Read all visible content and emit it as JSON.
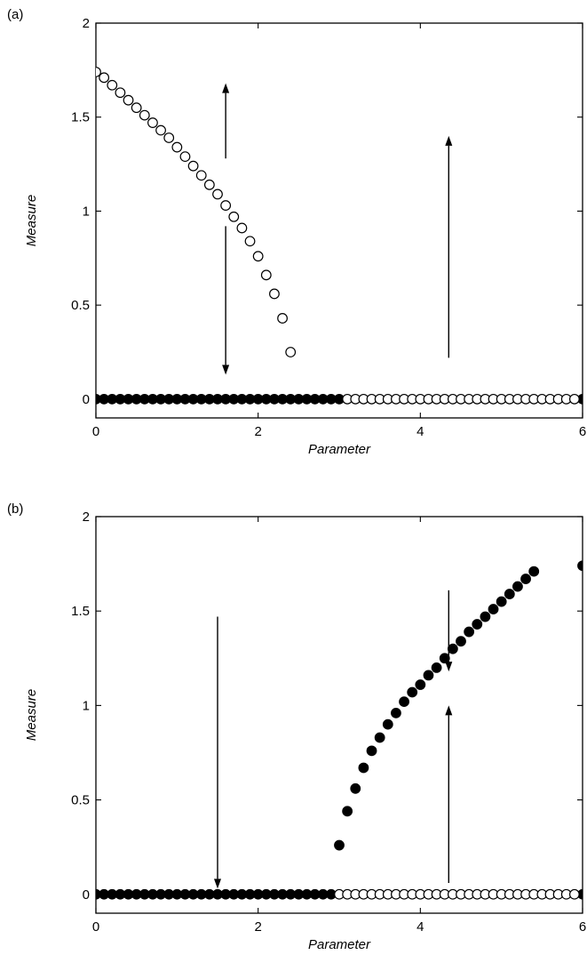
{
  "chart_data": [
    {
      "panel_label": "(a)",
      "type": "scatter",
      "xlabel": "Parameter",
      "ylabel": "Measure",
      "xlim": [
        0,
        6
      ],
      "ylim": [
        -0.1,
        2
      ],
      "xticks": [
        0,
        2,
        4,
        6
      ],
      "yticks": [
        0,
        0.5,
        1,
        1.5,
        2
      ],
      "xtick_labels": [
        "0",
        "2",
        "4",
        "6"
      ],
      "ytick_labels": [
        "0",
        "0.5",
        "1",
        "1.5",
        "2"
      ],
      "series": [
        {
          "marker": "filled",
          "points": [
            [
              0,
              0
            ],
            [
              0.1,
              0
            ],
            [
              0.2,
              0
            ],
            [
              0.3,
              0
            ],
            [
              0.4,
              0
            ],
            [
              0.5,
              0
            ],
            [
              0.6,
              0
            ],
            [
              0.7,
              0
            ],
            [
              0.8,
              0
            ],
            [
              0.9,
              0
            ],
            [
              1.0,
              0
            ],
            [
              1.1,
              0
            ],
            [
              1.2,
              0
            ],
            [
              1.3,
              0
            ],
            [
              1.4,
              0
            ],
            [
              1.5,
              0
            ],
            [
              1.6,
              0
            ],
            [
              1.7,
              0
            ],
            [
              1.8,
              0
            ],
            [
              1.9,
              0
            ],
            [
              2.0,
              0
            ],
            [
              2.1,
              0
            ],
            [
              2.2,
              0
            ],
            [
              2.3,
              0
            ],
            [
              2.4,
              0
            ],
            [
              2.5,
              0
            ],
            [
              2.6,
              0
            ],
            [
              2.7,
              0
            ],
            [
              2.8,
              0
            ],
            [
              2.9,
              0
            ],
            [
              3.0,
              0
            ],
            [
              6.0,
              0
            ]
          ]
        },
        {
          "marker": "open",
          "points": [
            [
              0,
              1.74
            ],
            [
              0.1,
              1.71
            ],
            [
              0.2,
              1.67
            ],
            [
              0.3,
              1.63
            ],
            [
              0.4,
              1.59
            ],
            [
              0.5,
              1.55
            ],
            [
              0.6,
              1.51
            ],
            [
              0.7,
              1.47
            ],
            [
              0.8,
              1.43
            ],
            [
              0.9,
              1.39
            ],
            [
              1.0,
              1.34
            ],
            [
              1.1,
              1.29
            ],
            [
              1.2,
              1.24
            ],
            [
              1.3,
              1.19
            ],
            [
              1.4,
              1.14
            ],
            [
              1.5,
              1.09
            ],
            [
              1.6,
              1.03
            ],
            [
              1.7,
              0.97
            ],
            [
              1.8,
              0.91
            ],
            [
              1.9,
              0.84
            ],
            [
              2.0,
              0.76
            ],
            [
              2.1,
              0.66
            ],
            [
              2.2,
              0.56
            ],
            [
              2.3,
              0.43
            ],
            [
              2.4,
              0.25
            ],
            [
              3.1,
              0
            ],
            [
              3.2,
              0
            ],
            [
              3.3,
              0
            ],
            [
              3.4,
              0
            ],
            [
              3.5,
              0
            ],
            [
              3.6,
              0
            ],
            [
              3.7,
              0
            ],
            [
              3.8,
              0
            ],
            [
              3.9,
              0
            ],
            [
              4.0,
              0
            ],
            [
              4.1,
              0
            ],
            [
              4.2,
              0
            ],
            [
              4.3,
              0
            ],
            [
              4.4,
              0
            ],
            [
              4.5,
              0
            ],
            [
              4.6,
              0
            ],
            [
              4.7,
              0
            ],
            [
              4.8,
              0
            ],
            [
              4.9,
              0
            ],
            [
              5.0,
              0
            ],
            [
              5.1,
              0
            ],
            [
              5.2,
              0
            ],
            [
              5.3,
              0
            ],
            [
              5.4,
              0
            ],
            [
              5.5,
              0
            ],
            [
              5.6,
              0
            ],
            [
              5.7,
              0
            ],
            [
              5.8,
              0
            ],
            [
              5.9,
              0
            ]
          ]
        }
      ],
      "arrows": [
        {
          "x": 1.6,
          "from": 1.28,
          "to": 1.68
        },
        {
          "x": 1.6,
          "from": 0.92,
          "to": 0.13
        },
        {
          "x": 4.35,
          "from": 0.22,
          "to": 1.4
        }
      ]
    },
    {
      "panel_label": "(b)",
      "type": "scatter",
      "xlabel": "Parameter",
      "ylabel": "Measure",
      "xlim": [
        0,
        6
      ],
      "ylim": [
        -0.1,
        2
      ],
      "xticks": [
        0,
        2,
        4,
        6
      ],
      "yticks": [
        0,
        0.5,
        1,
        1.5,
        2
      ],
      "xtick_labels": [
        "0",
        "2",
        "4",
        "6"
      ],
      "ytick_labels": [
        "0",
        "0.5",
        "1",
        "1.5",
        "2"
      ],
      "series": [
        {
          "marker": "filled",
          "points": [
            [
              0,
              0
            ],
            [
              0.1,
              0
            ],
            [
              0.2,
              0
            ],
            [
              0.3,
              0
            ],
            [
              0.4,
              0
            ],
            [
              0.5,
              0
            ],
            [
              0.6,
              0
            ],
            [
              0.7,
              0
            ],
            [
              0.8,
              0
            ],
            [
              0.9,
              0
            ],
            [
              1.0,
              0
            ],
            [
              1.1,
              0
            ],
            [
              1.2,
              0
            ],
            [
              1.3,
              0
            ],
            [
              1.4,
              0
            ],
            [
              1.5,
              0
            ],
            [
              1.6,
              0
            ],
            [
              1.7,
              0
            ],
            [
              1.8,
              0
            ],
            [
              1.9,
              0
            ],
            [
              2.0,
              0
            ],
            [
              2.1,
              0
            ],
            [
              2.2,
              0
            ],
            [
              2.3,
              0
            ],
            [
              2.4,
              0
            ],
            [
              2.5,
              0
            ],
            [
              2.6,
              0
            ],
            [
              2.7,
              0
            ],
            [
              2.8,
              0
            ],
            [
              2.9,
              0
            ],
            [
              6.0,
              0
            ],
            [
              3.0,
              0.26
            ],
            [
              3.1,
              0.44
            ],
            [
              3.2,
              0.56
            ],
            [
              3.3,
              0.67
            ],
            [
              3.4,
              0.76
            ],
            [
              3.5,
              0.83
            ],
            [
              3.6,
              0.9
            ],
            [
              3.7,
              0.96
            ],
            [
              3.8,
              1.02
            ],
            [
              3.9,
              1.07
            ],
            [
              4.0,
              1.11
            ],
            [
              4.1,
              1.16
            ],
            [
              4.2,
              1.2
            ],
            [
              4.3,
              1.25
            ],
            [
              4.4,
              1.3
            ],
            [
              4.5,
              1.34
            ],
            [
              4.6,
              1.39
            ],
            [
              4.7,
              1.43
            ],
            [
              4.8,
              1.47
            ],
            [
              4.9,
              1.51
            ],
            [
              5.0,
              1.55
            ],
            [
              5.1,
              1.59
            ],
            [
              5.2,
              1.63
            ],
            [
              5.3,
              1.67
            ],
            [
              5.4,
              1.71
            ],
            [
              6.0,
              1.74
            ]
          ]
        },
        {
          "marker": "open",
          "points": [
            [
              3.0,
              0
            ],
            [
              3.1,
              0
            ],
            [
              3.2,
              0
            ],
            [
              3.3,
              0
            ],
            [
              3.4,
              0
            ],
            [
              3.5,
              0
            ],
            [
              3.6,
              0
            ],
            [
              3.7,
              0
            ],
            [
              3.8,
              0
            ],
            [
              3.9,
              0
            ],
            [
              4.0,
              0
            ],
            [
              4.1,
              0
            ],
            [
              4.2,
              0
            ],
            [
              4.3,
              0
            ],
            [
              4.4,
              0
            ],
            [
              4.5,
              0
            ],
            [
              4.6,
              0
            ],
            [
              4.7,
              0
            ],
            [
              4.8,
              0
            ],
            [
              4.9,
              0
            ],
            [
              5.0,
              0
            ],
            [
              5.1,
              0
            ],
            [
              5.2,
              0
            ],
            [
              5.3,
              0
            ],
            [
              5.4,
              0
            ],
            [
              5.5,
              0
            ],
            [
              5.6,
              0
            ],
            [
              5.7,
              0
            ],
            [
              5.8,
              0
            ],
            [
              5.9,
              0
            ]
          ]
        }
      ],
      "arrows": [
        {
          "x": 1.5,
          "from": 1.47,
          "to": 0.03
        },
        {
          "x": 4.35,
          "from": 1.61,
          "to": 1.18
        },
        {
          "x": 4.35,
          "from": 0.06,
          "to": 1.0
        }
      ]
    }
  ]
}
